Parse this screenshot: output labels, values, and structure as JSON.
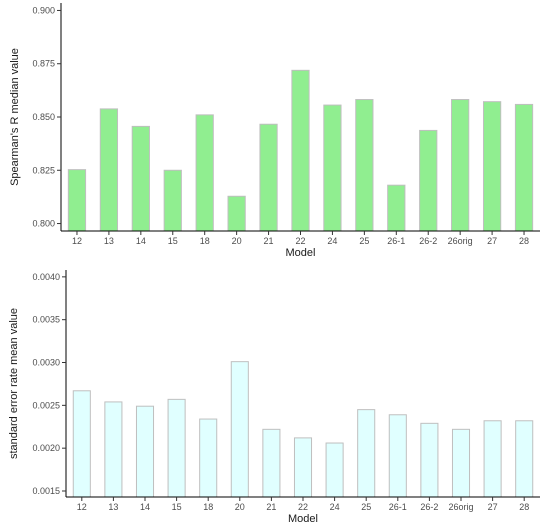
{
  "chart_data": [
    {
      "type": "bar",
      "categories": [
        "12",
        "13",
        "14",
        "15",
        "18",
        "20",
        "21",
        "22",
        "24",
        "25",
        "26-1",
        "26-2",
        "26orig",
        "27",
        "28"
      ],
      "values": [
        0.8253,
        0.8538,
        0.8456,
        0.825,
        0.851,
        0.8128,
        0.8466,
        0.8719,
        0.8556,
        0.8582,
        0.818,
        0.8437,
        0.8582,
        0.8572,
        0.8559
      ],
      "xlabel": "Model",
      "ylabel": "Spearman's R median value",
      "ylim": [
        0.7965,
        0.9035
      ],
      "yticks": [
        "0.800",
        "0.825",
        "0.850",
        "0.875",
        "0.900"
      ],
      "bar_fill": "#90ee90",
      "bar_stroke": "#bfbfbf",
      "grid": false
    },
    {
      "type": "bar",
      "categories": [
        "12",
        "13",
        "14",
        "15",
        "18",
        "20",
        "21",
        "22",
        "24",
        "25",
        "26-1",
        "26-2",
        "26orig",
        "27",
        "28"
      ],
      "values": [
        0.00267,
        0.00254,
        0.00249,
        0.00257,
        0.00234,
        0.00301,
        0.00222,
        0.00212,
        0.00206,
        0.00245,
        0.00239,
        0.00229,
        0.00222,
        0.00232,
        0.00232
      ],
      "xlabel": "Model",
      "ylabel": "standard error rate mean value",
      "ylim": [
        0.00143,
        0.00408
      ],
      "yticks": [
        "0.0015",
        "0.0020",
        "0.0025",
        "0.0030",
        "0.0035",
        "0.0040"
      ],
      "bar_fill": "#e0ffff",
      "bar_stroke": "#bfbfbf",
      "grid": false
    }
  ]
}
